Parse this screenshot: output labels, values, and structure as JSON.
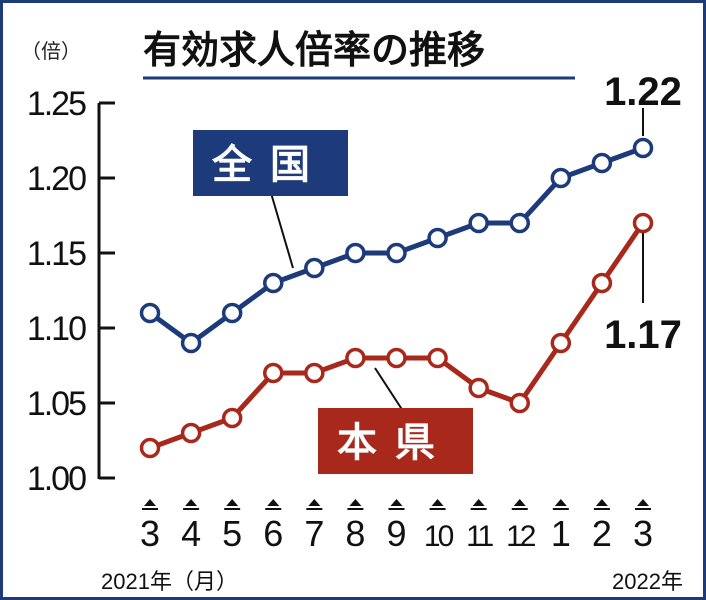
{
  "chart_data": {
    "type": "line",
    "title": "有効求人倍率の推移",
    "ylabel": "（倍）",
    "ylim": [
      1.0,
      1.25
    ],
    "yticks": [
      "1.00",
      "1.05",
      "1.10",
      "1.15",
      "1.20",
      "1.25"
    ],
    "categories": [
      "3",
      "4",
      "5",
      "6",
      "7",
      "8",
      "9",
      "10",
      "11",
      "12",
      "1",
      "2",
      "3"
    ],
    "x_year_labels": {
      "start": "2021年（月）",
      "end": "2022年"
    },
    "grid": false,
    "series": [
      {
        "name": "全国",
        "color": "#1d3a7a",
        "values": [
          1.11,
          1.09,
          1.11,
          1.13,
          1.14,
          1.15,
          1.15,
          1.16,
          1.17,
          1.17,
          1.2,
          1.21,
          1.22
        ],
        "end_label": "1.22"
      },
      {
        "name": "本県",
        "color": "#a8281c",
        "values": [
          1.02,
          1.03,
          1.04,
          1.07,
          1.07,
          1.08,
          1.08,
          1.08,
          1.06,
          1.05,
          1.09,
          1.13,
          1.17
        ],
        "end_label": "1.17"
      }
    ]
  }
}
